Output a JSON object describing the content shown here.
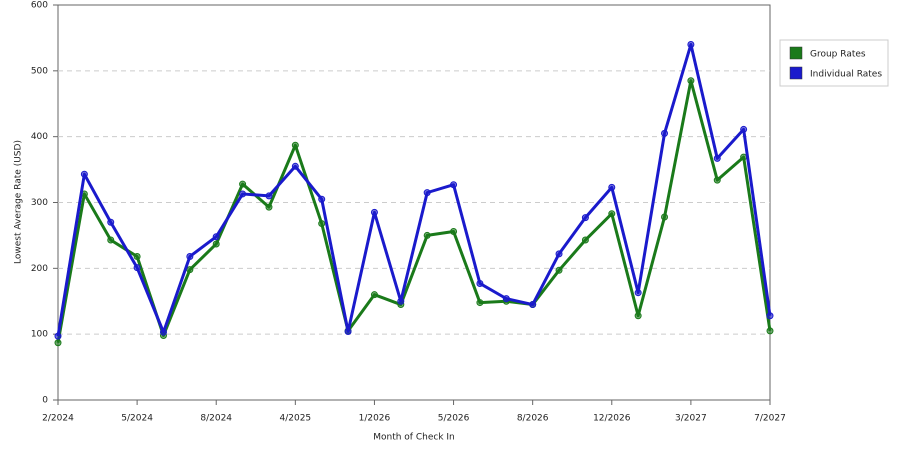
{
  "chart_data": {
    "type": "line",
    "x_label": "Month of Check In",
    "y_label": "Lowest Average Rate (USD)",
    "categories": [
      "2/2024",
      null,
      null,
      "5/2024",
      null,
      null,
      "8/2024",
      null,
      null,
      "4/2025",
      null,
      null,
      "1/2026",
      null,
      null,
      "5/2026",
      null,
      null,
      "8/2026",
      null,
      null,
      "12/2026",
      null,
      null,
      "3/2027",
      null,
      null,
      "7/2027"
    ],
    "series": [
      {
        "name": "Group Rates",
        "color": "#1a7a1a",
        "values": [
          87,
          313,
          243,
          218,
          98,
          198,
          237,
          328,
          293,
          387,
          268,
          105,
          160,
          145,
          250,
          256,
          148,
          150,
          145,
          197,
          243,
          283,
          128,
          278,
          485,
          334,
          369,
          105
        ]
      },
      {
        "name": "Individual Rates",
        "color": "#1a1acc",
        "values": [
          97,
          343,
          270,
          201,
          103,
          218,
          248,
          313,
          310,
          355,
          305,
          104,
          285,
          150,
          315,
          327,
          177,
          154,
          145,
          222,
          277,
          323,
          163,
          405,
          540,
          367,
          411,
          128
        ]
      }
    ],
    "ylim": [
      0,
      600
    ],
    "yticks": [
      0,
      100,
      200,
      300,
      400,
      500,
      600
    ],
    "grid": true,
    "legend": "right"
  }
}
